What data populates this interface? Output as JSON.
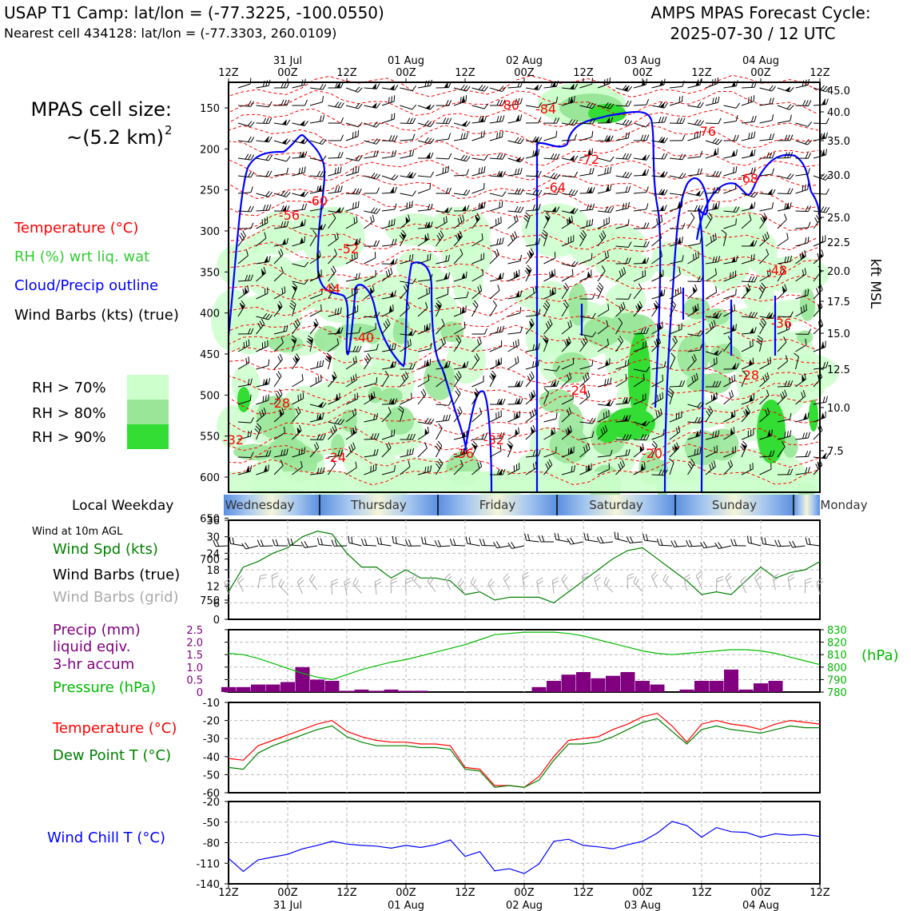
{
  "header": {
    "title_left": "USAP T1 Camp: lat/lon = (-77.3225, -100.0550)",
    "subtitle_left": "Nearest cell 434128: lat/lon = (-77.3303, 260.0109)",
    "title_right_1": "AMPS MPAS Forecast Cycle:",
    "title_right_2": "2025-07-30 / 12 UTC"
  },
  "legend_top": {
    "cell_size_1": "MPAS cell size:",
    "cell_size_2": "~(5.2 km)",
    "cell_size_sup": "2",
    "temp": "Temperature (°C)",
    "rh": "RH (%) wrt liq. wat",
    "cloud": "Cloud/Precip outline",
    "wind": "Wind Barbs (kts) (true)",
    "rh70": "RH > 70%",
    "rh80": "RH > 80%",
    "rh90": "RH > 90%"
  },
  "colors": {
    "rh70": "#ccffcc",
    "rh80": "#99e699",
    "rh90": "#33dd33",
    "temp": "#ff0000",
    "cloud": "#0000ff",
    "dew": "#008000",
    "precip": "#800080",
    "pressure": "#00bb00",
    "windchill": "#0000ff",
    "grid_barb": "#aaaaaa"
  },
  "time_axis": {
    "hour_labels": [
      "12Z",
      "00Z",
      "12Z",
      "00Z",
      "12Z",
      "00Z",
      "12Z",
      "00Z",
      "12Z",
      "00Z",
      "12Z"
    ],
    "date_labels": [
      "31 Jul",
      "01 Aug",
      "02 Aug",
      "03 Aug",
      "04 Aug"
    ]
  },
  "cross_section": {
    "p_ticks": [
      "150",
      "200",
      "250",
      "300",
      "350",
      "400",
      "450",
      "500",
      "550",
      "600",
      "650",
      "700",
      "750"
    ],
    "kft_ticks": [
      "45.0",
      "40.0",
      "35.0",
      "30.0",
      "25.0",
      "22.5",
      "20.0",
      "17.5",
      "15.0",
      "12.5",
      "10.0",
      "7.5"
    ],
    "kft_label": "kft MSL",
    "temp_labels": [
      "-80",
      "-84",
      "-76",
      "-72",
      "-68",
      "-64",
      "-60",
      "-56",
      "-52",
      "-48",
      "-44",
      "-40",
      "-36",
      "-36",
      "-32",
      "-32",
      "-28",
      "-28",
      "-24",
      "-24",
      "-20"
    ]
  },
  "weekday": {
    "label": "Local Weekday",
    "days": [
      "Wednesday",
      "Thursday",
      "Friday",
      "Saturday",
      "Sunday",
      "Monday"
    ]
  },
  "panel_wind": {
    "caption": "Wind at 10m AGL",
    "label_speed": "Wind Spd (kts)",
    "label_true": "Wind Barbs (true)",
    "label_grid": "Wind Barbs (grid)",
    "y_ticks": [
      "36",
      "30",
      "24",
      "18",
      "12",
      "6",
      "0"
    ]
  },
  "panel_precip": {
    "label_1": "Precip (mm)",
    "label_2": "liquid eqiv.",
    "label_3": "3-hr accum",
    "label_pres": "Pressure (hPa)",
    "y_ticks": [
      "2.5",
      "2.0",
      "1.5",
      "1.0",
      "0.5",
      "0"
    ],
    "p_ticks": [
      "830",
      "820",
      "810",
      "800",
      "790",
      "780"
    ],
    "p_unit": "(hPa)"
  },
  "panel_temp": {
    "label_t": "Temperature (°C)",
    "label_td": "Dew Point T (°C)",
    "y_ticks": [
      "-10",
      "-20",
      "-30",
      "-40",
      "-50",
      "-60"
    ]
  },
  "panel_chill": {
    "label": "Wind Chill T (°C)",
    "y_ticks": [
      "-20",
      "-50",
      "-80",
      "-110",
      "-140"
    ]
  },
  "chart_data": {
    "type": "line",
    "x_hours_from_start": [
      0,
      3,
      6,
      9,
      12,
      15,
      18,
      21,
      24,
      27,
      30,
      33,
      36,
      39,
      42,
      45,
      48,
      51,
      54,
      57,
      60,
      63,
      66,
      69,
      72,
      75,
      78,
      81,
      84,
      87,
      90,
      93,
      96,
      99,
      102,
      105,
      108,
      111,
      114,
      117,
      120
    ],
    "x_range_labels": [
      "2025-07-30 12Z",
      "2025-08-04 12Z"
    ],
    "wind_speed_kts": [
      10,
      19,
      21,
      24,
      26,
      30,
      32,
      31,
      24,
      19,
      19,
      15,
      18,
      15,
      15,
      14,
      9,
      10,
      7,
      8,
      8,
      8,
      6,
      10,
      14,
      18,
      22,
      25,
      26,
      22,
      18,
      14,
      9,
      10,
      9,
      14,
      19,
      15,
      17,
      18,
      21
    ],
    "precip_mm": [
      0.2,
      0.2,
      0.3,
      0.3,
      0.4,
      1.0,
      0.5,
      0.45,
      0.05,
      0.1,
      0.05,
      0.1,
      0.05,
      0.05,
      0,
      0,
      0,
      0,
      0,
      0,
      0,
      0.2,
      0.45,
      0.7,
      0.8,
      0.55,
      0.65,
      0.8,
      0.45,
      0.3,
      0,
      0.1,
      0.45,
      0.45,
      0.9,
      0.1,
      0.35,
      0.45,
      0,
      0,
      0
    ],
    "pressure_hPa": [
      811,
      810,
      807,
      803,
      799,
      795,
      792,
      790,
      794,
      798,
      801,
      804,
      806,
      809,
      812,
      815,
      818,
      822,
      826,
      827,
      828,
      828,
      828,
      827,
      825,
      822,
      819,
      816,
      813,
      811,
      810,
      811,
      812,
      813,
      814,
      814,
      813,
      811,
      808,
      805,
      802
    ],
    "temperature_C": [
      -41,
      -42,
      -34,
      -31,
      -28,
      -25,
      -22,
      -20,
      -26,
      -29,
      -31,
      -32,
      -32,
      -33,
      -33,
      -34,
      -46,
      -47,
      -56,
      -56,
      -57,
      -51,
      -40,
      -31,
      -30,
      -29,
      -25,
      -22,
      -18,
      -16,
      -23,
      -32,
      -22,
      -20,
      -22,
      -23,
      -25,
      -22,
      -20,
      -21,
      -22
    ],
    "dewpoint_C": [
      -46,
      -47,
      -38,
      -34,
      -31,
      -28,
      -25,
      -23,
      -29,
      -32,
      -34,
      -34,
      -34,
      -35,
      -35,
      -36,
      -47,
      -48,
      -57,
      -56,
      -57,
      -53,
      -42,
      -33,
      -33,
      -32,
      -29,
      -25,
      -21,
      -19,
      -26,
      -33,
      -25,
      -23,
      -25,
      -26,
      -27,
      -25,
      -23,
      -24,
      -24
    ],
    "wind_chill_C": [
      -103,
      -122,
      -105,
      -101,
      -97,
      -89,
      -84,
      -78,
      -82,
      -84,
      -85,
      -88,
      -84,
      -87,
      -83,
      -76,
      -100,
      -93,
      -121,
      -118,
      -125,
      -111,
      -78,
      -75,
      -84,
      -86,
      -89,
      -83,
      -78,
      -66,
      -49,
      -55,
      -72,
      -58,
      -64,
      -65,
      -72,
      -67,
      -69,
      -68,
      -71
    ]
  }
}
